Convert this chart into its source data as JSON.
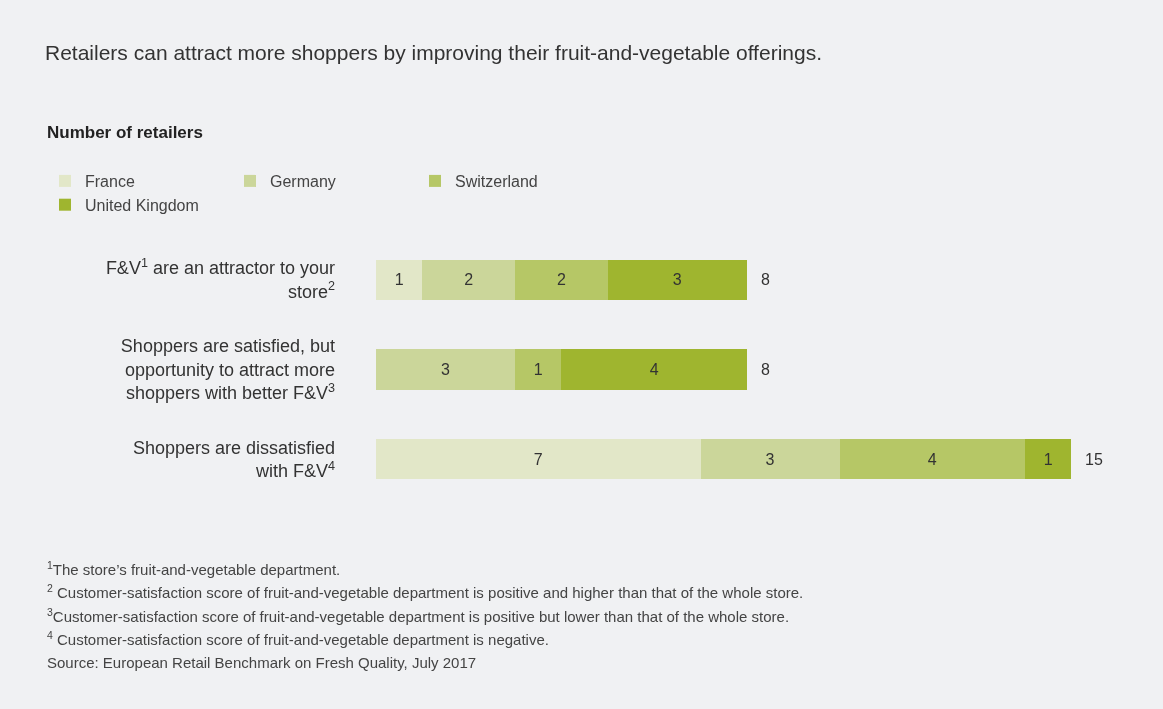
{
  "chart_data": {
    "type": "bar",
    "orientation": "horizontal",
    "stacked": true,
    "title": "Retailers can attract more shoppers by improving their fruit-and-vegetable offerings.",
    "subtitle": "Number of retailers",
    "categories": [
      "F&V$^{1}$ are an attractor to your store$^{2}$",
      "Shoppers are satisfied, but opportunity to attract more shoppers with better F&V$^{3}$",
      "Shoppers are dissatisfied with F&V$^{4}$"
    ],
    "series": [
      {
        "name": "France",
        "color": "#e2e7c8",
        "values": [
          1,
          null,
          7
        ]
      },
      {
        "name": "Germany",
        "color": "#cbd69a",
        "values": [
          2,
          3,
          3
        ]
      },
      {
        "name": "Switzerland",
        "color": "#b6c766",
        "values": [
          2,
          1,
          4
        ]
      },
      {
        "name": "United Kingdom",
        "color": "#9fb52f",
        "values": [
          3,
          4,
          1
        ]
      }
    ],
    "data_labels": true,
    "totals": [
      "8",
      "8",
      "15"
    ],
    "legend": "top left",
    "annotations": [
      "$^{1}$The store’s fruit-and-vegetable department.",
      "$^{2}$ Customer-satisfaction score of fruit-and-vegetable department is positive and higher than that of the whole store.",
      "$^{3}$Customer-satisfaction score of fruit-and-vegetable department is positive but lower than that of the whole store.",
      "$^{4}$ Customer-satisfaction score of fruit-and-vegetable department is negative.",
      "Source: European Retail Benchmark on Fresh Quality, July 2017"
    ]
  }
}
